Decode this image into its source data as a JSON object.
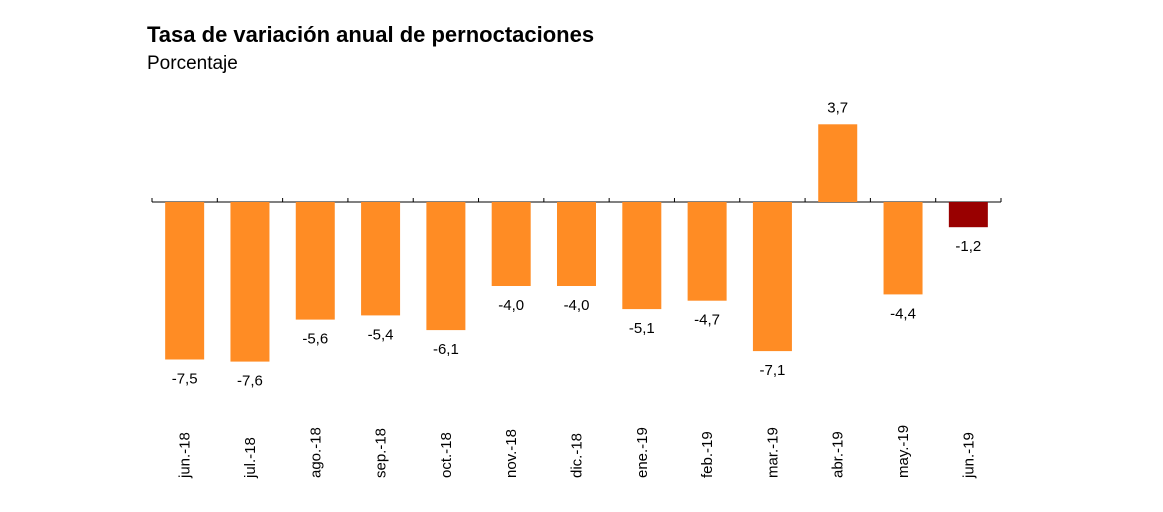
{
  "chart_data": {
    "type": "bar",
    "title": "Tasa de variación anual de pernoctaciones",
    "subtitle": "Porcentaje",
    "categories": [
      "jun.-18",
      "jul.-18",
      "ago.-18",
      "sep.-18",
      "oct.-18",
      "nov.-18",
      "dic.-18",
      "ene.-19",
      "feb.-19",
      "mar.-19",
      "abr.-19",
      "may.-19",
      "jun.-19"
    ],
    "values": [
      -7.5,
      -7.6,
      -5.6,
      -5.4,
      -6.1,
      -4.0,
      -4.0,
      -5.1,
      -4.7,
      -7.1,
      3.7,
      -4.4,
      -1.2
    ],
    "value_labels": [
      "-7,5",
      "-7,6",
      "-5,6",
      "-5,4",
      "-6,1",
      "-4,0",
      "-4,0",
      "-5,1",
      "-4,7",
      "-7,1",
      "3,7",
      "-4,4",
      "-1,2"
    ],
    "ylim": [
      -9,
      5
    ],
    "grid": false,
    "legend": "none",
    "colors": {
      "bar": "#FF8C24",
      "highlight": "#990000",
      "axis": "#000000"
    },
    "highlight_index": 12
  }
}
